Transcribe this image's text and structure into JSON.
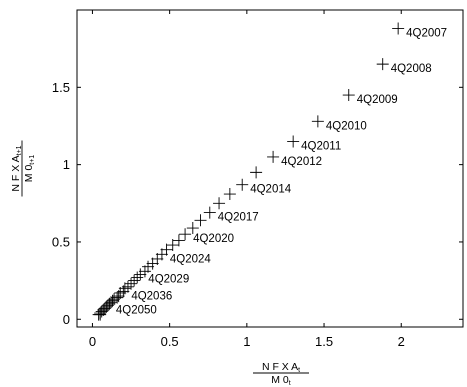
{
  "chart_data": {
    "type": "scatter",
    "marker": "plus",
    "frame": "box",
    "grid": false,
    "xlim": [
      -0.1,
      2.4
    ],
    "ylim": [
      -0.05,
      2.0
    ],
    "xticks": [
      0,
      0.5,
      1,
      1.5,
      2
    ],
    "yticks": [
      0,
      0.5,
      1,
      1.5
    ],
    "xtick_labels": [
      "0",
      "0.5",
      "1",
      "1.5",
      "2"
    ],
    "ytick_labels": [
      "0",
      "0.5",
      "1",
      "1.5"
    ],
    "xlabel": {
      "numerator": "N F X A",
      "numerator_sub": "t",
      "denominator": "M 0",
      "denominator_sub": "t"
    },
    "ylabel": {
      "numerator": "N F X A",
      "numerator_sub": "t+1",
      "denominator": "M 0",
      "denominator_sub": "t+1"
    },
    "series": [
      {
        "x": [
          1.98,
          1.88,
          1.66,
          1.46,
          1.3,
          1.17,
          1.06,
          0.97,
          0.89,
          0.82,
          0.76,
          0.7,
          0.65,
          0.6,
          0.56,
          0.52,
          0.48,
          0.45,
          0.42,
          0.39,
          0.36,
          0.34,
          0.31,
          0.29,
          0.27,
          0.25,
          0.23,
          0.21,
          0.2,
          0.18,
          0.17,
          0.16,
          0.14,
          0.13,
          0.12,
          0.11,
          0.1,
          0.09,
          0.08,
          0.07,
          0.06,
          0.05,
          0.05,
          0.04
        ],
        "y": [
          1.88,
          1.65,
          1.45,
          1.28,
          1.15,
          1.05,
          0.95,
          0.87,
          0.81,
          0.75,
          0.69,
          0.64,
          0.59,
          0.55,
          0.51,
          0.48,
          0.45,
          0.42,
          0.39,
          0.36,
          0.34,
          0.31,
          0.29,
          0.27,
          0.25,
          0.23,
          0.21,
          0.2,
          0.18,
          0.17,
          0.15,
          0.14,
          0.13,
          0.12,
          0.11,
          0.1,
          0.09,
          0.08,
          0.07,
          0.06,
          0.05,
          0.04,
          0.03,
          0.03
        ]
      }
    ],
    "annotations": [
      {
        "text": "4Q2007",
        "x": 1.98,
        "y": 1.88
      },
      {
        "text": "4Q2008",
        "x": 1.88,
        "y": 1.65
      },
      {
        "text": "4Q2009",
        "x": 1.66,
        "y": 1.45
      },
      {
        "text": "4Q2010",
        "x": 1.46,
        "y": 1.28
      },
      {
        "text": "4Q2011",
        "x": 1.3,
        "y": 1.15
      },
      {
        "text": "4Q2012",
        "x": 1.17,
        "y": 1.05
      },
      {
        "text": "4Q2014",
        "x": 0.97,
        "y": 0.87
      },
      {
        "text": "4Q2017",
        "x": 0.76,
        "y": 0.69
      },
      {
        "text": "4Q2020",
        "x": 0.6,
        "y": 0.55
      },
      {
        "text": "4Q2024",
        "x": 0.45,
        "y": 0.42
      },
      {
        "text": "4Q2029",
        "x": 0.31,
        "y": 0.29
      },
      {
        "text": "4Q2036",
        "x": 0.2,
        "y": 0.18
      },
      {
        "text": "4Q2050",
        "x": 0.1,
        "y": 0.09
      }
    ]
  }
}
